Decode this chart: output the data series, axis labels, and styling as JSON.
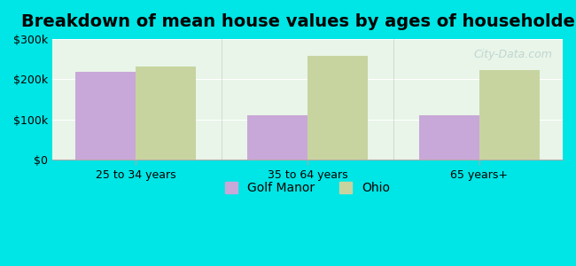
{
  "title": "Breakdown of mean house values by ages of householders",
  "categories": [
    "25 to 34 years",
    "35 to 64 years",
    "65 years+"
  ],
  "golf_manor": [
    218000,
    110000,
    110000
  ],
  "ohio": [
    232000,
    258000,
    222000
  ],
  "golf_manor_color": "#c8a8d8",
  "ohio_color": "#c8d4a0",
  "ylim": [
    0,
    300000
  ],
  "yticks": [
    0,
    100000,
    200000,
    300000
  ],
  "ytick_labels": [
    "$0",
    "$100k",
    "$200k",
    "$300k"
  ],
  "background_outer": "#00e5e5",
  "background_inner_top": "#e8f5e8",
  "background_inner_bottom": "#f5fff5",
  "legend_golf_manor": "Golf Manor",
  "legend_ohio": "Ohio",
  "bar_width": 0.35,
  "title_fontsize": 14,
  "tick_fontsize": 9,
  "legend_fontsize": 10
}
